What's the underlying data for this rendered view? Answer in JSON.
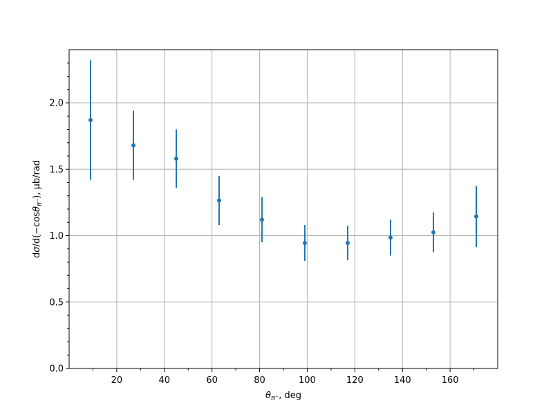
{
  "chart_data": {
    "type": "scatter",
    "title": "",
    "xlabel": "θπ⁻, deg",
    "ylabel": "dσ/d(−cosθπ⁻), μb/rad",
    "xlim": [
      0,
      180
    ],
    "ylim": [
      0,
      2.4
    ],
    "xticks": [
      20,
      40,
      60,
      80,
      100,
      120,
      140,
      160
    ],
    "yticks": [
      0.0,
      0.5,
      1.0,
      1.5,
      2.0
    ],
    "xtick_labels": [
      "20",
      "40",
      "60",
      "80",
      "100",
      "120",
      "140",
      "160"
    ],
    "ytick_labels": [
      "0.0",
      "0.5",
      "1.0",
      "1.5",
      "2.0"
    ],
    "grid": true,
    "color": "#1f77b4",
    "points": [
      {
        "x": 9,
        "y": 1.87,
        "err": 0.45
      },
      {
        "x": 27,
        "y": 1.68,
        "err": 0.26
      },
      {
        "x": 45,
        "y": 1.58,
        "err": 0.22
      },
      {
        "x": 63,
        "y": 1.265,
        "err": 0.185
      },
      {
        "x": 81,
        "y": 1.12,
        "err": 0.17
      },
      {
        "x": 99,
        "y": 0.945,
        "err": 0.135
      },
      {
        "x": 117,
        "y": 0.945,
        "err": 0.13
      },
      {
        "x": 135,
        "y": 0.985,
        "err": 0.135
      },
      {
        "x": 153,
        "y": 1.025,
        "err": 0.15
      },
      {
        "x": 171,
        "y": 1.145,
        "err": 0.23
      }
    ]
  }
}
